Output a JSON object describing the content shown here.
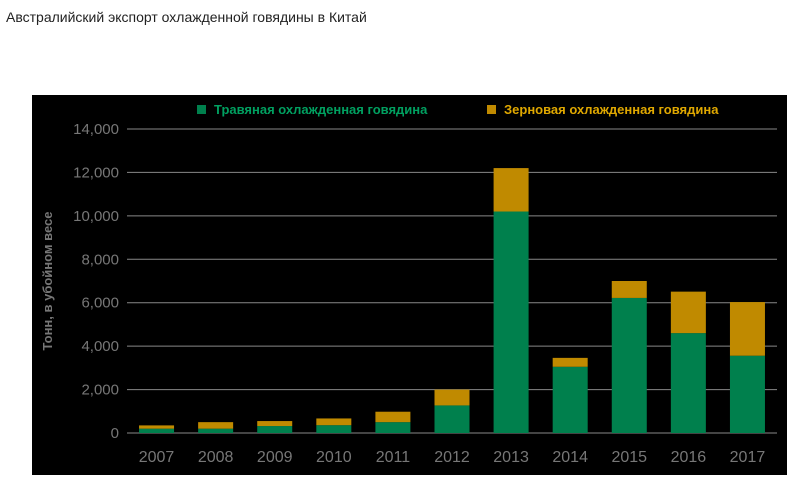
{
  "title": "Австралийский экспорт охлажденной говядины в Китай",
  "chart_data": {
    "type": "bar",
    "stacked": true,
    "categories": [
      "2007",
      "2008",
      "2009",
      "2010",
      "2011",
      "2012",
      "2013",
      "2014",
      "2015",
      "2016",
      "2017"
    ],
    "series": [
      {
        "name": "Травяная охлажденная говядина",
        "color": "#00804d",
        "values": [
          200,
          200,
          320,
          360,
          500,
          1270,
          10200,
          3050,
          6220,
          4600,
          3560
        ]
      },
      {
        "name": "Зерновая охлажденная говядина",
        "color": "#c08a00",
        "values": [
          150,
          300,
          230,
          310,
          480,
          730,
          2000,
          410,
          780,
          1910,
          2470
        ]
      }
    ],
    "ylabel": "Тонн, в убойном весе",
    "ylim": [
      0,
      14000
    ],
    "yticks": [
      "0",
      "2,000",
      "4,000",
      "6,000",
      "8,000",
      "10,000",
      "12,000",
      "14,000"
    ],
    "grid": true,
    "legend": "top"
  }
}
